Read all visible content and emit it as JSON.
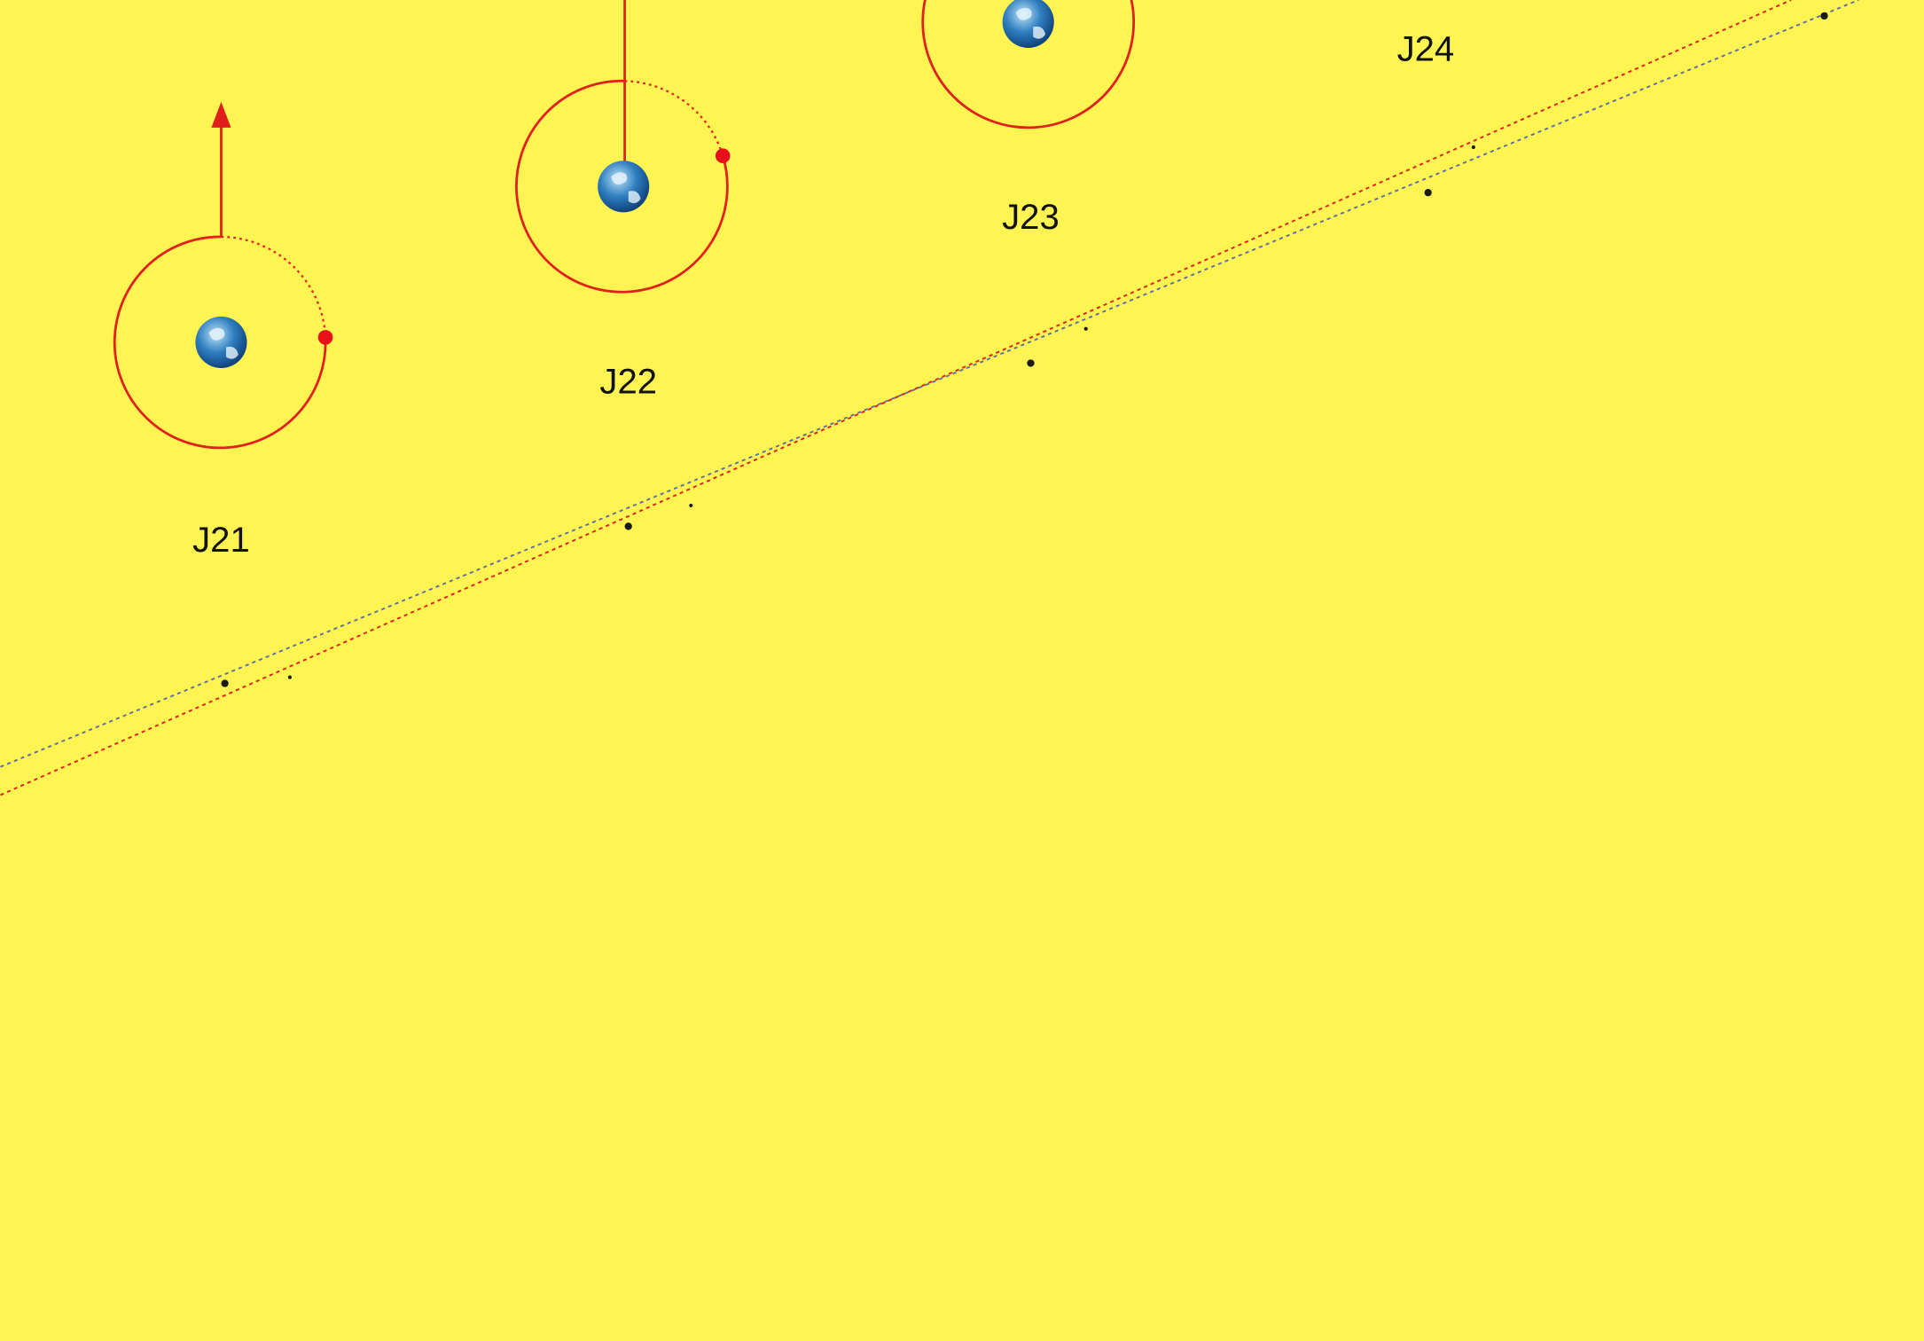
{
  "days": [
    {
      "label": "J21"
    },
    {
      "label": "J22"
    },
    {
      "label": "J23"
    },
    {
      "label": "J24"
    }
  ]
}
